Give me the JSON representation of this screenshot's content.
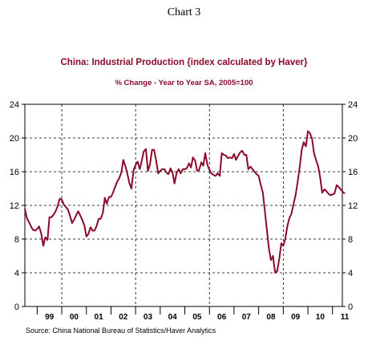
{
  "header": {
    "label": "Chart 3"
  },
  "source": "Source:  China National Bureau of Statistics/Haver Analytics",
  "chart_data": {
    "type": "line",
    "title": "China: Industrial Production {index calculated by Haver}",
    "subtitle": "% Change - Year to Year     SA, 2005=100",
    "xlabel": "",
    "ylabel": "",
    "ylim": [
      0,
      24
    ],
    "xlim": [
      1998.5,
      2011.4
    ],
    "yticks": [
      0,
      4,
      8,
      12,
      16,
      20,
      24
    ],
    "xtick_labels": [
      "99",
      "00",
      "01",
      "02",
      "03",
      "04",
      "05",
      "06",
      "07",
      "08",
      "09",
      "10",
      "11"
    ],
    "grid": "dashed vertical lines at year boundaries, dashed horizontal lines at 4-unit steps",
    "line_color": "#8b0a2a",
    "series": [
      {
        "values": [
          [
            1998.5,
            11.6
          ],
          [
            1998.58,
            10.5
          ],
          [
            1998.67,
            10.0
          ],
          [
            1998.75,
            9.5
          ],
          [
            1998.83,
            9.1
          ],
          [
            1998.92,
            9.0
          ],
          [
            1999.0,
            9.2
          ],
          [
            1999.08,
            9.5
          ],
          [
            1999.17,
            8.6
          ],
          [
            1999.25,
            7.2
          ],
          [
            1999.33,
            8.2
          ],
          [
            1999.42,
            7.9
          ],
          [
            1999.5,
            10.6
          ],
          [
            1999.58,
            10.6
          ],
          [
            1999.67,
            10.9
          ],
          [
            1999.75,
            11.3
          ],
          [
            1999.83,
            11.9
          ],
          [
            1999.92,
            12.8
          ],
          [
            2000.0,
            12.7
          ],
          [
            2000.08,
            12.1
          ],
          [
            2000.17,
            11.8
          ],
          [
            2000.25,
            11.5
          ],
          [
            2000.33,
            10.8
          ],
          [
            2000.42,
            9.9
          ],
          [
            2000.5,
            10.3
          ],
          [
            2000.58,
            10.8
          ],
          [
            2000.67,
            11.3
          ],
          [
            2000.75,
            10.8
          ],
          [
            2000.83,
            10.3
          ],
          [
            2000.92,
            9.6
          ],
          [
            2001.0,
            8.3
          ],
          [
            2001.08,
            8.6
          ],
          [
            2001.17,
            9.4
          ],
          [
            2001.25,
            9.0
          ],
          [
            2001.33,
            9.0
          ],
          [
            2001.42,
            9.6
          ],
          [
            2001.5,
            10.4
          ],
          [
            2001.58,
            10.4
          ],
          [
            2001.67,
            11.1
          ],
          [
            2001.75,
            12.9
          ],
          [
            2001.83,
            12.2
          ],
          [
            2001.92,
            13.0
          ],
          [
            2002.0,
            13.0
          ],
          [
            2002.08,
            13.5
          ],
          [
            2002.17,
            14.2
          ],
          [
            2002.25,
            14.8
          ],
          [
            2002.33,
            15.2
          ],
          [
            2002.42,
            15.9
          ],
          [
            2002.5,
            17.4
          ],
          [
            2002.58,
            16.7
          ],
          [
            2002.67,
            15.7
          ],
          [
            2002.75,
            14.6
          ],
          [
            2002.83,
            14.0
          ],
          [
            2002.92,
            16.2
          ],
          [
            2003.0,
            16.8
          ],
          [
            2003.08,
            17.2
          ],
          [
            2003.17,
            16.3
          ],
          [
            2003.25,
            17.3
          ],
          [
            2003.33,
            18.4
          ],
          [
            2003.42,
            18.7
          ],
          [
            2003.5,
            16.1
          ],
          [
            2003.58,
            16.8
          ],
          [
            2003.67,
            18.6
          ],
          [
            2003.75,
            18.6
          ],
          [
            2003.83,
            17.4
          ],
          [
            2003.92,
            15.8
          ],
          [
            2004.0,
            16.1
          ],
          [
            2004.08,
            16.3
          ],
          [
            2004.17,
            16.3
          ],
          [
            2004.25,
            15.9
          ],
          [
            2004.33,
            15.7
          ],
          [
            2004.42,
            16.4
          ],
          [
            2004.5,
            15.9
          ],
          [
            2004.58,
            14.6
          ],
          [
            2004.67,
            15.9
          ],
          [
            2004.75,
            16.3
          ],
          [
            2004.83,
            15.8
          ],
          [
            2004.92,
            16.3
          ],
          [
            2005.0,
            16.3
          ],
          [
            2005.08,
            16.4
          ],
          [
            2005.17,
            17.0
          ],
          [
            2005.25,
            16.5
          ],
          [
            2005.33,
            17.7
          ],
          [
            2005.42,
            17.3
          ],
          [
            2005.5,
            16.1
          ],
          [
            2005.58,
            16.2
          ],
          [
            2005.67,
            17.1
          ],
          [
            2005.75,
            16.7
          ],
          [
            2005.83,
            18.2
          ],
          [
            2005.92,
            16.8
          ],
          [
            2006.0,
            16.2
          ],
          [
            2006.08,
            15.8
          ],
          [
            2006.17,
            15.6
          ],
          [
            2006.25,
            15.5
          ],
          [
            2006.33,
            15.8
          ],
          [
            2006.42,
            15.5
          ],
          [
            2006.5,
            18.2
          ],
          [
            2006.58,
            18.0
          ],
          [
            2006.67,
            17.9
          ],
          [
            2006.75,
            17.6
          ],
          [
            2006.83,
            17.7
          ],
          [
            2006.92,
            17.6
          ],
          [
            2007.0,
            18.1
          ],
          [
            2007.08,
            17.4
          ],
          [
            2007.17,
            17.9
          ],
          [
            2007.25,
            18.3
          ],
          [
            2007.33,
            18.5
          ],
          [
            2007.42,
            18.0
          ],
          [
            2007.5,
            18.0
          ],
          [
            2007.58,
            16.3
          ],
          [
            2007.67,
            16.6
          ],
          [
            2007.75,
            16.3
          ],
          [
            2007.83,
            16.0
          ],
          [
            2007.92,
            15.7
          ],
          [
            2008.0,
            15.5
          ],
          [
            2008.08,
            14.5
          ],
          [
            2008.17,
            13.5
          ],
          [
            2008.25,
            11.4
          ],
          [
            2008.33,
            9.2
          ],
          [
            2008.42,
            6.8
          ],
          [
            2008.5,
            5.5
          ],
          [
            2008.58,
            6.0
          ],
          [
            2008.67,
            4.0
          ],
          [
            2008.75,
            4.2
          ],
          [
            2008.83,
            5.5
          ],
          [
            2008.92,
            7.5
          ],
          [
            2009.0,
            7.2
          ],
          [
            2009.08,
            8.0
          ],
          [
            2009.17,
            9.6
          ],
          [
            2009.25,
            10.5
          ],
          [
            2009.33,
            11.0
          ],
          [
            2009.42,
            12.2
          ],
          [
            2009.5,
            13.2
          ],
          [
            2009.58,
            14.7
          ],
          [
            2009.67,
            16.6
          ],
          [
            2009.75,
            18.6
          ],
          [
            2009.83,
            19.5
          ],
          [
            2009.92,
            19.0
          ],
          [
            2010.0,
            20.8
          ],
          [
            2010.08,
            20.6
          ],
          [
            2010.17,
            19.9
          ],
          [
            2010.25,
            18.2
          ],
          [
            2010.33,
            17.4
          ],
          [
            2010.42,
            16.6
          ],
          [
            2010.5,
            15.3
          ],
          [
            2010.58,
            13.5
          ],
          [
            2010.67,
            13.9
          ],
          [
            2010.75,
            13.7
          ],
          [
            2010.83,
            13.4
          ],
          [
            2010.92,
            13.2
          ],
          [
            2011.0,
            13.3
          ],
          [
            2011.08,
            13.4
          ],
          [
            2011.17,
            14.4
          ],
          [
            2011.25,
            14.2
          ],
          [
            2011.33,
            13.9
          ],
          [
            2011.42,
            13.6
          ],
          [
            2011.5,
            13.4
          ]
        ]
      }
    ]
  }
}
